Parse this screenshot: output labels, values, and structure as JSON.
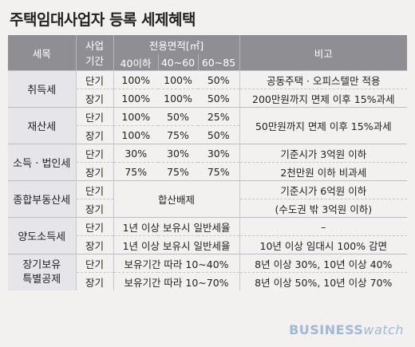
{
  "title": "주택임대사업자 등록 세제혜택",
  "header": {
    "tax": "세목",
    "period_line1": "사업",
    "period_line2": "기간",
    "area": "전용면적[㎡]",
    "area_cols": [
      "40이하",
      "40~60",
      "60~85"
    ],
    "note": "비고"
  },
  "rows": {
    "acq": {
      "name": "취득세",
      "r1": {
        "period": "단기",
        "v1": "100%",
        "v2": "100%",
        "v3": "50%",
        "note": "공동주택 · 오피스텔만 적용"
      },
      "r2": {
        "period": "장기",
        "v1": "100%",
        "v2": "100%",
        "v3": "50%",
        "note": "200만원까지 면제 이후 15%과세"
      }
    },
    "prop": {
      "name": "재산세",
      "r1": {
        "period": "단기",
        "v1": "100%",
        "v2": "50%",
        "v3": "25%"
      },
      "r2": {
        "period": "장기",
        "v1": "100%",
        "v2": "75%",
        "v3": "50%"
      },
      "note": "50만원까지 면제 이후 15%과세"
    },
    "income": {
      "name": "소득 · 법인세",
      "r1": {
        "period": "단기",
        "v1": "30%",
        "v2": "30%",
        "v3": "30%",
        "note": "기준시가 3억원 이하"
      },
      "r2": {
        "period": "장기",
        "v1": "75%",
        "v2": "75%",
        "v3": "75%",
        "note": "2천만원 이하 비과세"
      }
    },
    "comp": {
      "name": "종합부동산세",
      "r1": {
        "period": "단기",
        "note": "기준시가 6억원 이하"
      },
      "r2": {
        "period": "장기",
        "note": "(수도권 밖 3억원 이하)"
      },
      "merged": "합산배제"
    },
    "transfer": {
      "name": "양도소득세",
      "r1": {
        "period": "단기",
        "span": "1년 이상 보유시 일반세율",
        "note": "–"
      },
      "r2": {
        "period": "장기",
        "span": "1년 이상 보유시 일반세율",
        "note": "10년 이상 임대시 100% 감면"
      }
    },
    "ltc": {
      "name_line1": "장기보유",
      "name_line2": "특별공제",
      "r1": {
        "period": "단기",
        "span": "보유기간 따라 10~40%",
        "note": "8년 이상 30%, 10년 이상 40%"
      },
      "r2": {
        "period": "장기",
        "span": "보유기간 따라 10~70%",
        "note": "8년 이상 50%, 10년 이상 70%"
      }
    }
  },
  "logo": {
    "part1": "BUSINESS",
    "part2": "watch"
  }
}
